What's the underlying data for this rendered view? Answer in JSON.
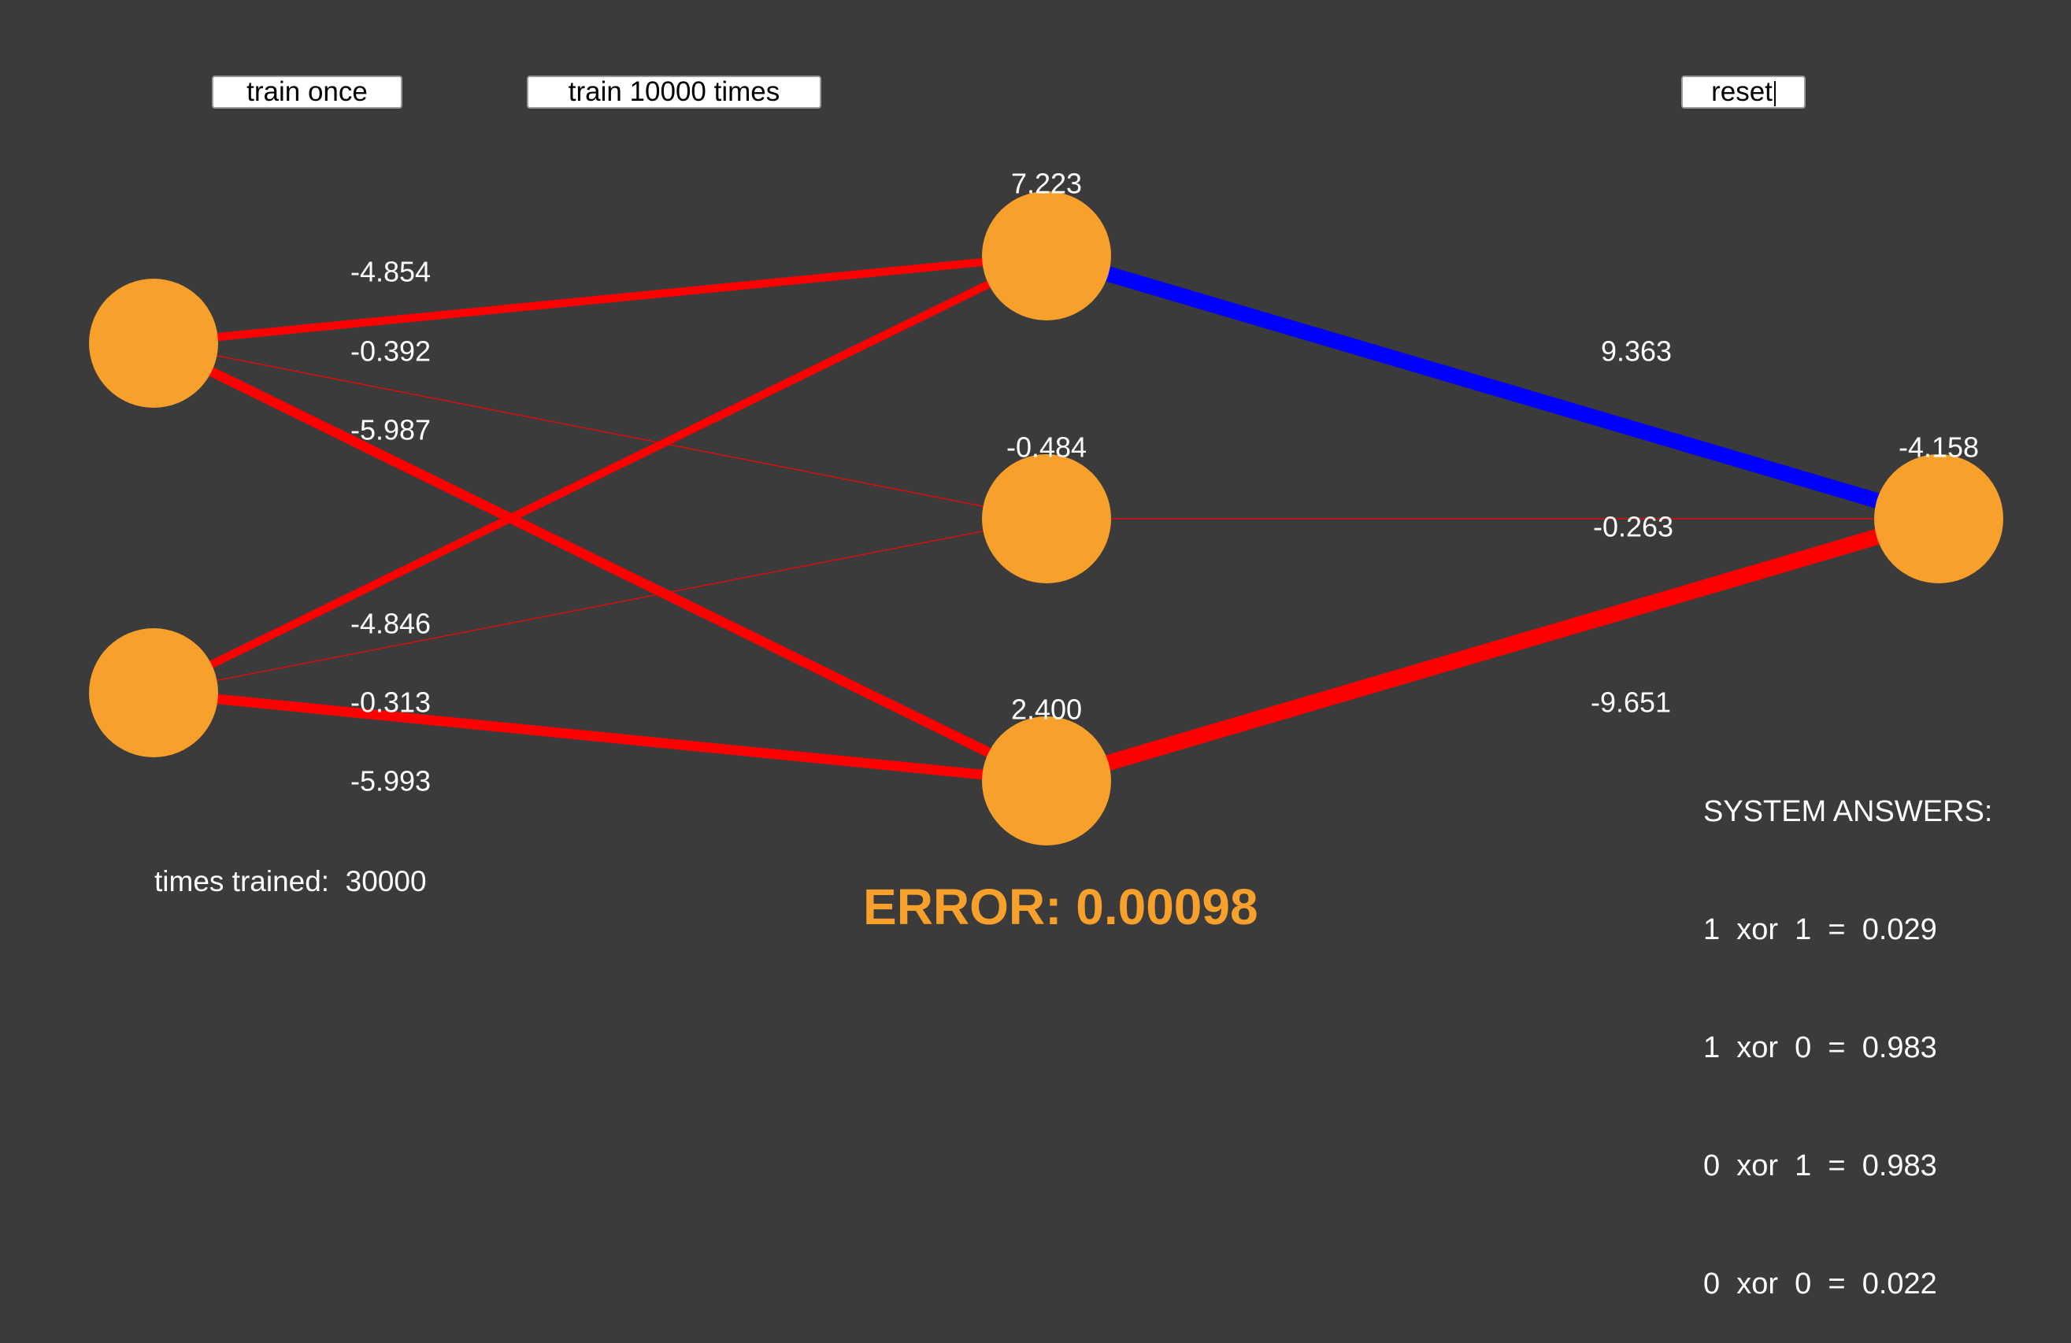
{
  "buttons": {
    "train_once": "train once",
    "train_many": "train 10000 times",
    "reset": "reset"
  },
  "network": {
    "input_nodes": [
      {
        "id": "in1",
        "bias": ""
      },
      {
        "id": "in2",
        "bias": ""
      }
    ],
    "hidden_nodes": [
      {
        "id": "h1",
        "bias": "7.223"
      },
      {
        "id": "h2",
        "bias": "-0.484"
      },
      {
        "id": "h3",
        "bias": "2.400"
      }
    ],
    "output_nodes": [
      {
        "id": "out",
        "bias": "-4.158"
      }
    ],
    "input_hidden_weights": [
      {
        "from": "in1",
        "to": "h1",
        "weight": -4.854,
        "label": "-4.854"
      },
      {
        "from": "in1",
        "to": "h2",
        "weight": -0.392,
        "label": "-0.392"
      },
      {
        "from": "in1",
        "to": "h3",
        "weight": -5.987,
        "label": "-5.987"
      },
      {
        "from": "in2",
        "to": "h1",
        "weight": -4.846,
        "label": "-4.846"
      },
      {
        "from": "in2",
        "to": "h2",
        "weight": -0.313,
        "label": "-0.313"
      },
      {
        "from": "in2",
        "to": "h3",
        "weight": -5.993,
        "label": "-5.993"
      }
    ],
    "hidden_output_weights": [
      {
        "from": "h1",
        "to": "out",
        "weight": 9.363,
        "label": "9.363"
      },
      {
        "from": "h2",
        "to": "out",
        "weight": -0.263,
        "label": "-0.263"
      },
      {
        "from": "h3",
        "to": "out",
        "weight": -9.651,
        "label": "-9.651"
      }
    ],
    "colors": {
      "node": "#f7a02c",
      "positive_edge": "#0000ff",
      "negative_edge": "#ff0000",
      "background": "#3b3b3b"
    }
  },
  "stats": {
    "times_trained": "times trained:  30000",
    "error": "ERROR: 0.00098"
  },
  "answers": {
    "header": "SYSTEM ANSWERS:",
    "lines": [
      "1  xor  1  =  0.029",
      "1  xor  0  =  0.983",
      "0  xor  1  =  0.983",
      "0  xor  0  =  0.022"
    ]
  }
}
